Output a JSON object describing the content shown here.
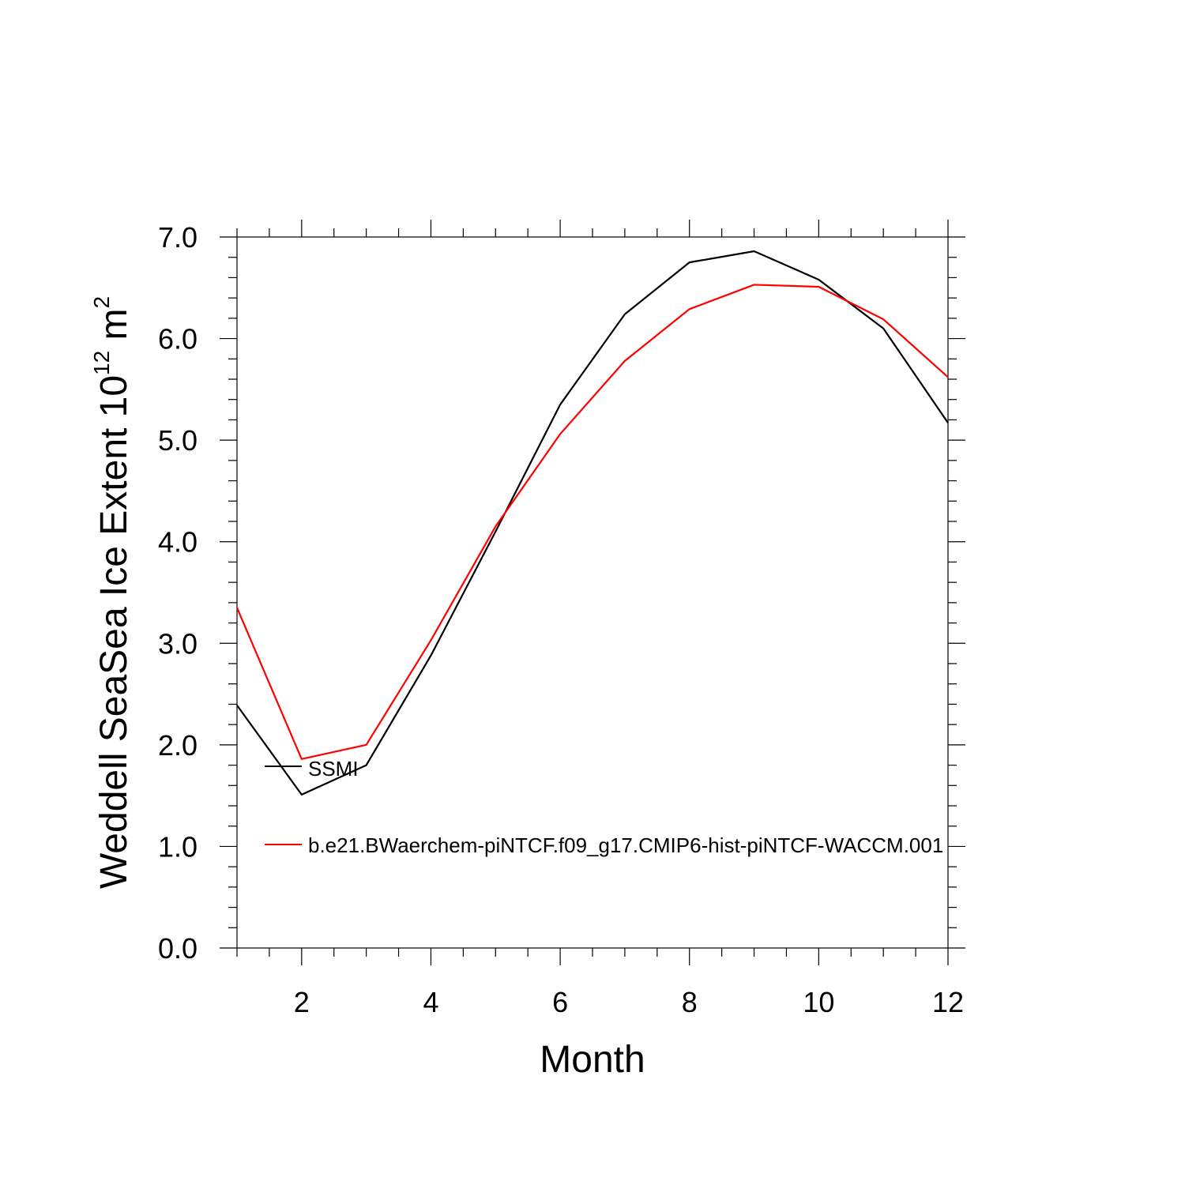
{
  "chart_data": {
    "type": "line",
    "title": "",
    "xlabel": "Month",
    "ylabel": {
      "main": "Weddell SeaSea Ice Extent 10",
      "superscript1": "12",
      "unit": " m",
      "superscript2": "2"
    },
    "xlim": [
      1,
      12
    ],
    "ylim": [
      0,
      7
    ],
    "x_ticks": [
      2,
      4,
      6,
      8,
      10,
      12
    ],
    "x_tick_labels": [
      "2",
      "4",
      "6",
      "8",
      "10",
      "12"
    ],
    "y_ticks": [
      0,
      1,
      2,
      3,
      4,
      5,
      6,
      7
    ],
    "y_tick_labels": [
      "0.0",
      "1.0",
      "2.0",
      "3.0",
      "4.0",
      "5.0",
      "6.0",
      "7.0"
    ],
    "x": [
      1,
      2,
      3,
      4,
      5,
      6,
      7,
      8,
      9,
      10,
      11,
      12
    ],
    "series": [
      {
        "name": "SSMI",
        "color": "#000000",
        "values": [
          2.39,
          1.51,
          1.8,
          2.88,
          4.1,
          5.35,
          6.24,
          6.75,
          6.86,
          6.58,
          6.1,
          5.17
        ]
      },
      {
        "name": "b.e21.BWaerchem-piNTCF.f09_g17.CMIP6-hist-piNTCF-WACCM.001",
        "color": "#ff0000",
        "values": [
          3.35,
          1.86,
          2.0,
          3.03,
          4.15,
          5.06,
          5.78,
          6.29,
          6.53,
          6.51,
          6.19,
          5.62
        ]
      }
    ],
    "legend": {
      "placement": "left-center",
      "entries": [
        "SSMI",
        "b.e21.BWaerchem-piNTCF.f09_g17.CMIP6-hist-piNTCF-WACCM.001"
      ]
    },
    "grid": false
  }
}
